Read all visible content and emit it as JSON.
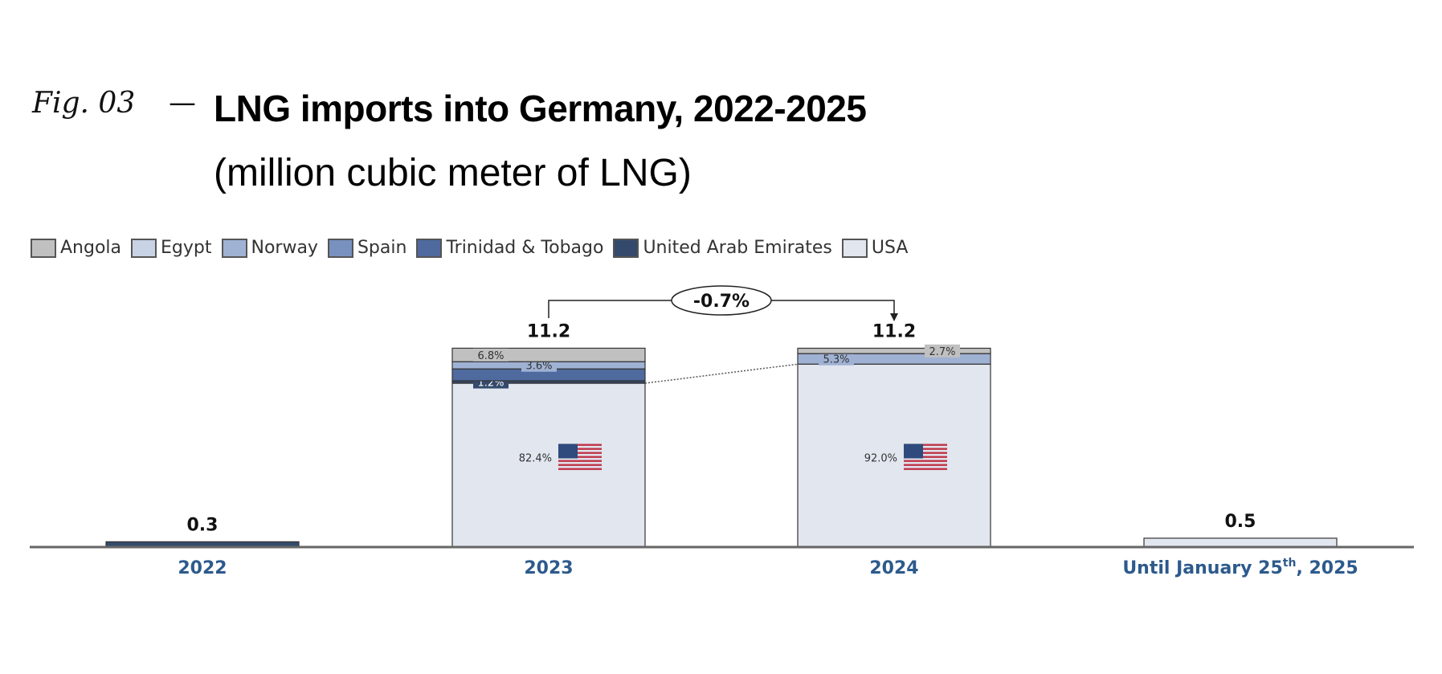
{
  "header": {
    "fig_label": "Fig. 03",
    "dash": "—",
    "title": "LNG imports into Germany, 2022-2025",
    "subtitle": "(million cubic meter of LNG)"
  },
  "chart_data": {
    "type": "bar",
    "stacked": true,
    "title": "LNG imports into Germany, 2022-2025",
    "ylabel": "million cubic meter of LNG",
    "grid": false,
    "legend_position": "top-left",
    "legend": [
      {
        "name": "Angola",
        "color": "#c0c0c0"
      },
      {
        "name": "Egypt",
        "color": "#c9d3e6"
      },
      {
        "name": "Norway",
        "color": "#a0b2d4"
      },
      {
        "name": "Spain",
        "color": "#7891bf"
      },
      {
        "name": "Trinidad & Tobago",
        "color": "#4e6a9e"
      },
      {
        "name": "United Arab Emirates",
        "color": "#344a6c"
      },
      {
        "name": "USA",
        "color": "#e1e6ef"
      }
    ],
    "categories": [
      "2022",
      "2023",
      "2024",
      "Until January 25th, 2025"
    ],
    "category_sup": {
      "index": 3,
      "before": "Until January 25",
      "sup": "th",
      "after": ", 2025"
    },
    "totals": [
      0.3,
      11.2,
      11.2,
      0.5
    ],
    "total_labels": [
      "0.3",
      "11.2",
      "11.2",
      "0.5"
    ],
    "segments_percent": [
      [
        {
          "country": "United Arab Emirates",
          "share": 100,
          "label": ""
        }
      ],
      [
        {
          "country": "USA",
          "share": 82.4,
          "label": "82.4%"
        },
        {
          "country": "United Arab Emirates",
          "share": 1.2,
          "label": "1.2%"
        },
        {
          "country": "Trinidad & Tobago",
          "share": 6.0,
          "label": ""
        },
        {
          "country": "Norway",
          "share": 3.6,
          "label": "3.6%"
        },
        {
          "country": "Angola",
          "share": 6.8,
          "label": "6.8%"
        }
      ],
      [
        {
          "country": "USA",
          "share": 92.0,
          "label": "92.0%"
        },
        {
          "country": "Norway",
          "share": 5.3,
          "label": "5.3%"
        },
        {
          "country": "Angola",
          "share": 2.7,
          "label": "2.7%"
        }
      ],
      [
        {
          "country": "USA",
          "share": 100,
          "label": ""
        }
      ]
    ],
    "annotation": {
      "from": "2023",
      "to": "2024",
      "label": "-0.7%"
    },
    "usa_flag_on": [
      "2023",
      "2024"
    ],
    "colors": {
      "category_label": "#2d5a8c",
      "axis": "#666666"
    }
  }
}
